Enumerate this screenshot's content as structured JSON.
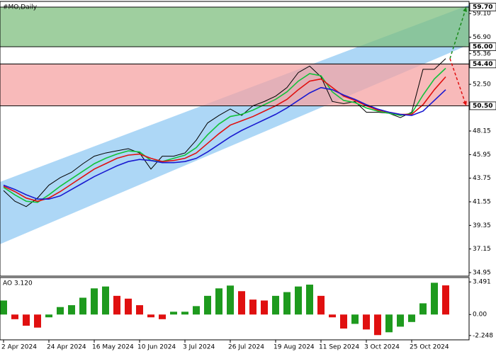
{
  "chart_data": [
    {
      "type": "line",
      "title": "#MO,Daily",
      "categories": [
        "2 Apr 2024",
        null,
        null,
        null,
        "24 Apr 2024",
        null,
        null,
        null,
        "16 May 2024",
        null,
        null,
        null,
        "10 Jun 2024",
        null,
        null,
        null,
        "3 Jul 2024",
        null,
        null,
        null,
        "26 Jul 2024",
        null,
        null,
        null,
        "19 Aug 2024",
        null,
        null,
        null,
        "11 Sep 2024",
        null,
        null,
        null,
        "3 Oct 2024",
        null,
        null,
        null,
        "25 Oct 2024",
        null,
        null,
        null
      ],
      "series": [
        {
          "color": "#000000",
          "values": [
            42.6,
            41.6,
            41.1,
            41.9,
            43.1,
            43.8,
            44.3,
            45.1,
            45.8,
            46.1,
            46.3,
            46.5,
            46.1,
            44.6,
            45.8,
            45.8,
            46.1,
            47.3,
            48.9,
            49.6,
            50.2,
            49.6,
            50.5,
            50.9,
            51.4,
            52.2,
            53.6,
            54.2,
            53.2,
            50.9,
            50.7,
            50.9,
            49.9,
            49.9,
            49.8,
            49.4,
            49.9,
            53.9,
            53.9,
            54.9
          ]
        },
        {
          "color": "#12c23a",
          "values": [
            42.9,
            42.2,
            41.6,
            41.5,
            42.2,
            43.0,
            43.7,
            44.4,
            45.1,
            45.6,
            46.0,
            46.3,
            46.2,
            45.4,
            45.3,
            45.6,
            45.9,
            46.6,
            47.8,
            48.8,
            49.5,
            49.7,
            50.1,
            50.6,
            51.1,
            51.8,
            52.8,
            53.5,
            53.3,
            51.8,
            51.0,
            50.8,
            50.3,
            50.0,
            49.8,
            49.6,
            49.8,
            51.5,
            53.0,
            54.0
          ]
        },
        {
          "color": "#e01010",
          "values": [
            43.0,
            42.5,
            41.9,
            41.6,
            41.9,
            42.5,
            43.2,
            43.9,
            44.6,
            45.1,
            45.6,
            45.9,
            46.0,
            45.6,
            45.3,
            45.4,
            45.6,
            46.1,
            47.0,
            47.9,
            48.7,
            49.1,
            49.5,
            50.0,
            50.5,
            51.1,
            52.0,
            52.8,
            53.0,
            52.2,
            51.4,
            51.0,
            50.5,
            50.1,
            49.9,
            49.7,
            49.7,
            50.6,
            52.0,
            53.2
          ]
        },
        {
          "color": "#1a1ad0",
          "values": [
            43.1,
            42.7,
            42.2,
            41.8,
            41.8,
            42.1,
            42.7,
            43.3,
            43.9,
            44.4,
            44.9,
            45.3,
            45.5,
            45.4,
            45.2,
            45.2,
            45.3,
            45.6,
            46.2,
            46.9,
            47.6,
            48.2,
            48.7,
            49.2,
            49.7,
            50.3,
            51.0,
            51.7,
            52.2,
            52.0,
            51.5,
            51.1,
            50.6,
            50.2,
            49.9,
            49.7,
            49.6,
            50.0,
            51.0,
            52.0
          ]
        }
      ],
      "ylim": [
        34.62,
        60.23
      ],
      "yticks": [
        34.95,
        37.15,
        39.35,
        41.55,
        43.75,
        45.95,
        48.15,
        {
          "value": 52.5,
          "label": "52.50"
        },
        {
          "value": 56.9,
          "label": "56.90"
        },
        {
          "value": 59.1,
          "label": "59.10"
        }
      ],
      "levels": [
        {
          "value": 59.7,
          "label": "59.70"
        },
        {
          "value": 56,
          "label": "56.00"
        },
        55.36,
        {
          "value": 54.4,
          "label": "54.40"
        },
        {
          "value": 50.5,
          "label": "50.50"
        }
      ],
      "zones": [
        {
          "from": 56,
          "to": 59.7,
          "color": "#7fbf7f",
          "arrow_color": "#1a8a1a"
        },
        {
          "from": 50.5,
          "to": 54.4,
          "color": "#f6a3a3",
          "arrow_color": "#e01010"
        }
      ],
      "channel": {
        "color": "#9fd0f5",
        "upper": [
          43.4,
          59.9
        ],
        "lower": [
          37.6,
          56.2
        ]
      }
    },
    {
      "type": "bar",
      "title": "AO 3.120",
      "values": [
        1.5,
        -0.5,
        -1.2,
        -1.4,
        -0.3,
        0.8,
        1.0,
        1.8,
        2.8,
        3.0,
        2.0,
        1.7,
        1.0,
        -0.3,
        -0.5,
        0.3,
        0.3,
        0.9,
        2.0,
        2.8,
        3.1,
        2.5,
        1.6,
        1.5,
        2.0,
        2.4,
        3.0,
        3.2,
        2.0,
        -0.3,
        -1.5,
        -1.0,
        -1.6,
        -2.2,
        -1.9,
        -1.3,
        -0.8,
        1.2,
        3.4,
        3.12
      ],
      "up_color": "#1e9a1e",
      "down_color": "#e01010",
      "ylim": [
        -2.71,
        3.96
      ],
      "yticks": [
        3.491,
        {
          "value": 0,
          "label": "0.00"
        },
        -2.248
      ]
    }
  ]
}
